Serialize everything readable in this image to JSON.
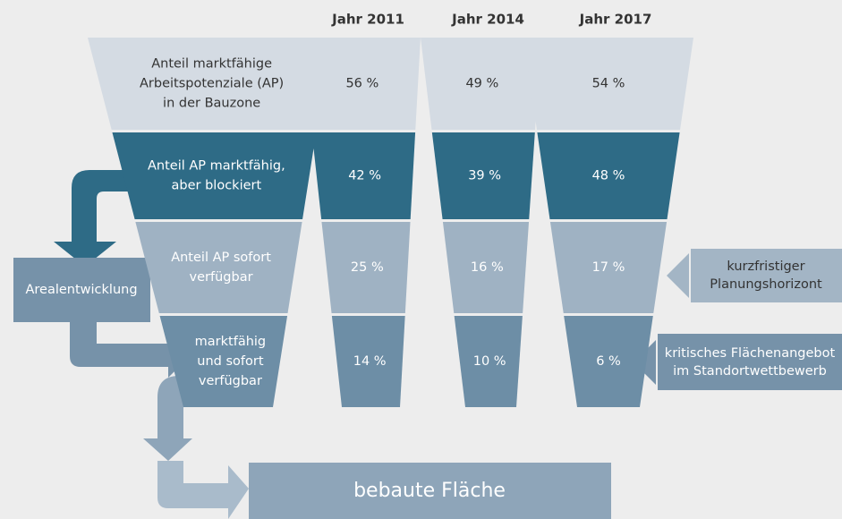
{
  "headers": [
    "Jahr 2011",
    "Jahr 2014",
    "Jahr 2017"
  ],
  "rows": [
    {
      "label": [
        "Anteil marktfähige",
        "Arbeitspotenziale (AP)",
        "in der Bauzone"
      ],
      "values": [
        "56 %",
        "49 %",
        "54 %"
      ]
    },
    {
      "label": [
        "Anteil AP marktfähig,",
        "aber blockiert"
      ],
      "values": [
        "42 %",
        "39 %",
        "48 %"
      ]
    },
    {
      "label": [
        "Anteil AP sofort",
        "verfügbar"
      ],
      "values": [
        "25 %",
        "16 %",
        "17 %"
      ]
    },
    {
      "label": [
        "marktfähig",
        "und sofort",
        "verfügbar"
      ],
      "values": [
        "14 %",
        "10 %",
        "6 %"
      ]
    }
  ],
  "side_left": "Arealentwicklung",
  "side_right": [
    [
      "kurzfristiger",
      "Planungshorizont"
    ],
    [
      "kritisches Flächenangebot",
      "im Standortwettbewerb"
    ]
  ],
  "bottom": "bebaute Fläche"
}
